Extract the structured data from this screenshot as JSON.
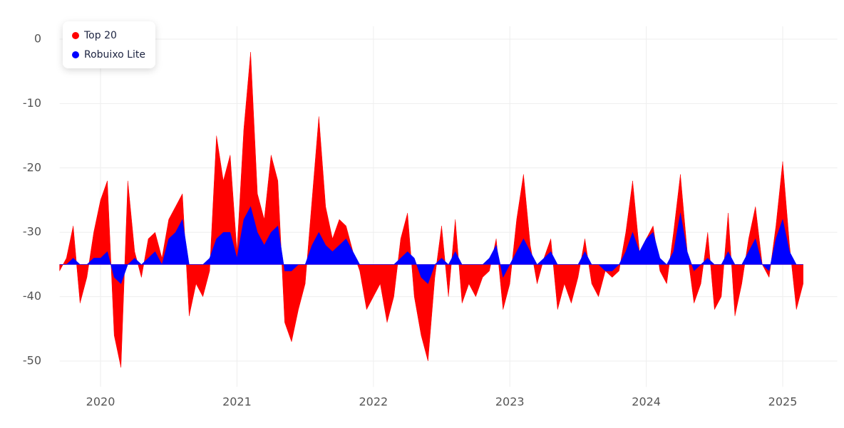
{
  "chart_data": {
    "type": "area",
    "x": [
      2019.7,
      2019.75,
      2019.8,
      2019.85,
      2019.9,
      2019.95,
      2020.0,
      2020.05,
      2020.1,
      2020.15,
      2020.2,
      2020.25,
      2020.3,
      2020.35,
      2020.4,
      2020.45,
      2020.5,
      2020.55,
      2020.6,
      2020.65,
      2020.7,
      2020.75,
      2020.8,
      2020.85,
      2020.9,
      2020.95,
      2021.0,
      2021.05,
      2021.1,
      2021.15,
      2021.2,
      2021.25,
      2021.3,
      2021.35,
      2021.4,
      2021.45,
      2021.5,
      2021.55,
      2021.6,
      2021.65,
      2021.7,
      2021.75,
      2021.8,
      2021.85,
      2021.9,
      2021.95,
      2022.0,
      2022.05,
      2022.1,
      2022.15,
      2022.2,
      2022.25,
      2022.3,
      2022.35,
      2022.4,
      2022.45,
      2022.5,
      2022.55,
      2022.6,
      2022.65,
      2022.7,
      2022.75,
      2022.8,
      2022.85,
      2022.9,
      2022.95,
      2023.0,
      2023.05,
      2023.1,
      2023.15,
      2023.2,
      2023.25,
      2023.3,
      2023.35,
      2023.4,
      2023.45,
      2023.5,
      2023.55,
      2023.6,
      2023.65,
      2023.7,
      2023.75,
      2023.8,
      2023.85,
      2023.9,
      2023.95,
      2024.0,
      2024.05,
      2024.1,
      2024.15,
      2024.2,
      2024.25,
      2024.3,
      2024.35,
      2024.4,
      2024.45,
      2024.5,
      2024.55,
      2024.6,
      2024.65,
      2024.7,
      2024.75,
      2024.8,
      2024.85,
      2024.9,
      2024.95,
      2025.0,
      2025.05,
      2025.1,
      2025.15
    ],
    "series": [
      {
        "name": "Top 20",
        "color": "#ff0000",
        "values": [
          -36,
          -34,
          -29,
          -41,
          -37,
          -30,
          -25,
          -22,
          -46,
          -51,
          -22,
          -33,
          -37,
          -31,
          -30,
          -34,
          -28,
          -26,
          -24,
          -43,
          -38,
          -40,
          -36,
          -15,
          -22,
          -18,
          -33,
          -14,
          -2,
          -24,
          -28,
          -18,
          -22,
          -44,
          -47,
          -42,
          -38,
          -25,
          -12,
          -26,
          -31,
          -28,
          -29,
          -33,
          -36,
          -42,
          -40,
          -38,
          -44,
          -40,
          -31,
          -27,
          -40,
          -46,
          -50,
          -37,
          -29,
          -40,
          -28,
          -41,
          -38,
          -40,
          -37,
          -36,
          -31,
          -42,
          -38,
          -28,
          -21,
          -32,
          -38,
          -34,
          -31,
          -42,
          -38,
          -41,
          -37,
          -31,
          -38,
          -40,
          -36,
          -37,
          -36,
          -30,
          -22,
          -33,
          -31,
          -29,
          -36,
          -38,
          -30,
          -21,
          -33,
          -41,
          -38,
          -30,
          -42,
          -40,
          -27,
          -43,
          -38,
          -31,
          -26,
          -35,
          -37,
          -29,
          -19,
          -32,
          -42,
          -38
        ]
      },
      {
        "name": "Robuixo Lite",
        "color": "#0000ff",
        "values": [
          -35,
          -35,
          -34,
          -35,
          -35,
          -34,
          -34,
          -33,
          -37,
          -38,
          -35,
          -34,
          -35,
          -34,
          -33,
          -35,
          -31,
          -30,
          -28,
          -35,
          -35,
          -35,
          -34,
          -31,
          -30,
          -30,
          -34,
          -28,
          -26,
          -30,
          -32,
          -30,
          -29,
          -36,
          -36,
          -35,
          -35,
          -32,
          -30,
          -32,
          -33,
          -32,
          -31,
          -33,
          -35,
          -35,
          -35,
          -35,
          -35,
          -35,
          -34,
          -33,
          -34,
          -37,
          -38,
          -35,
          -34,
          -35,
          -33,
          -35,
          -35,
          -35,
          -35,
          -34,
          -32,
          -37,
          -35,
          -33,
          -31,
          -33,
          -35,
          -34,
          -33,
          -35,
          -35,
          -35,
          -35,
          -33,
          -35,
          -35,
          -36,
          -36,
          -35,
          -33,
          -30,
          -33,
          -31,
          -30,
          -34,
          -35,
          -33,
          -27,
          -33,
          -36,
          -35,
          -34,
          -35,
          -35,
          -33,
          -35,
          -35,
          -33,
          -31,
          -35,
          -36,
          -31,
          -28,
          -33,
          -35,
          -35
        ]
      }
    ],
    "baseline": -35,
    "xlim": [
      2019.7,
      2025.4
    ],
    "xticks": [
      2020,
      2021,
      2022,
      2023,
      2024,
      2025
    ],
    "ylim": [
      -54,
      2
    ],
    "yticks": [
      -50,
      -40,
      -30,
      -20,
      -10,
      0
    ],
    "grid": true,
    "legend": "top-left"
  }
}
